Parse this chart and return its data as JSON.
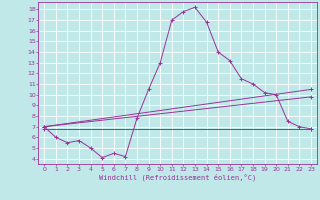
{
  "xlabel": "Windchill (Refroidissement éolien,°C)",
  "bg_color": "#c0e8e8",
  "grid_color": "#ffffff",
  "line_color": "#993399",
  "xlim": [
    -0.5,
    23.5
  ],
  "ylim": [
    3.5,
    18.7
  ],
  "xticks": [
    0,
    1,
    2,
    3,
    4,
    5,
    6,
    7,
    8,
    9,
    10,
    11,
    12,
    13,
    14,
    15,
    16,
    17,
    18,
    19,
    20,
    21,
    22,
    23
  ],
  "yticks": [
    4,
    5,
    6,
    7,
    8,
    9,
    10,
    11,
    12,
    13,
    14,
    15,
    16,
    17,
    18
  ],
  "line1_x": [
    0,
    1,
    2,
    3,
    4,
    5,
    6,
    7,
    8,
    9,
    10,
    11,
    12,
    13,
    14,
    15,
    16,
    17,
    18,
    19,
    20,
    21,
    22,
    23
  ],
  "line1_y": [
    7.0,
    6.0,
    5.5,
    5.7,
    5.0,
    4.1,
    4.5,
    4.2,
    7.8,
    10.5,
    13.0,
    17.0,
    17.8,
    18.2,
    16.8,
    14.0,
    13.2,
    11.5,
    11.0,
    10.2,
    10.0,
    7.5,
    7.0,
    6.8
  ],
  "line2_x": [
    0,
    23
  ],
  "line2_y": [
    6.8,
    6.8
  ],
  "line3_x": [
    0,
    23
  ],
  "line3_y": [
    7.0,
    9.8
  ],
  "line4_x": [
    0,
    23
  ],
  "line4_y": [
    7.0,
    10.5
  ],
  "marker": "+"
}
